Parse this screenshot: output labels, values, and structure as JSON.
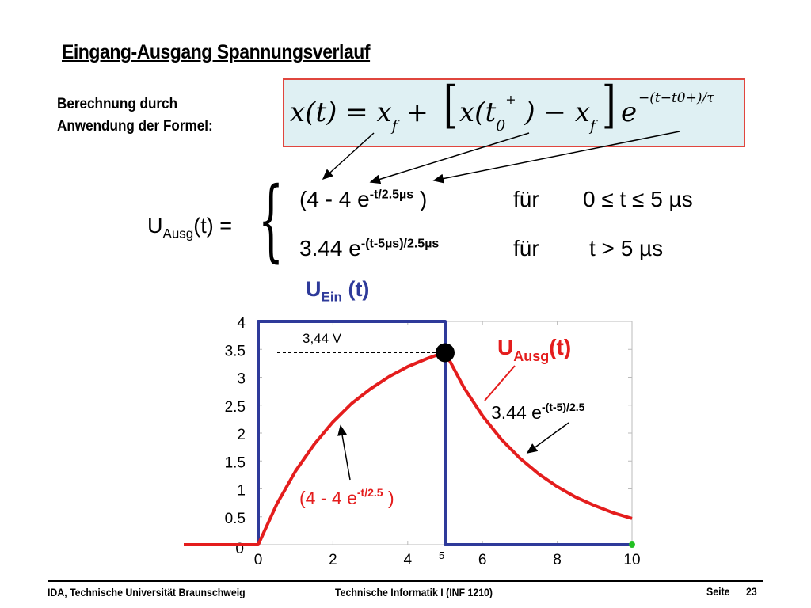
{
  "title": "Eingang-Ausgang Spannungsverlauf",
  "description": [
    "Berechnung durch",
    "Anwendung der Formel:"
  ],
  "formula": {
    "lhs": "x(t)",
    "eq": "=",
    "xf": "x",
    "f_sub": "f",
    "plus": "+",
    "bracket_open": "[",
    "xt0": "x(t",
    "t0_sub": "0",
    "t0_sup": "+",
    "close_paren": ")",
    "minus": "−",
    "bracket_close": "]",
    "e": "e",
    "exponent": "−(t−t0+)/τ"
  },
  "uausg_def": {
    "lhs_main": "U",
    "lhs_sub": "Ausg",
    "lhs_rest": "(t) =",
    "cases": [
      {
        "expr": "(4 - 4 e",
        "exp": "-t/2.5µs",
        "close": " )",
        "fuer": "für",
        "cond": "0 ≤ t ≤ 5 µs"
      },
      {
        "expr": "3.44 e",
        "exp": "-(t-5µs)/2.5µs",
        "close": "",
        "fuer": "für",
        "cond": "t > 5 µs"
      }
    ]
  },
  "labels": {
    "uein_main": "U",
    "uein_sub": "Ein",
    "uein_rest": " (t)",
    "uausg_main": "U",
    "uausg_sub": "Ausg",
    "uausg_rest": "(t)",
    "decay_formula_main": "3.44 e",
    "decay_formula_exp": "-(t-5)/2.5",
    "rise_formula_main": "(4 - 4 e",
    "rise_formula_exp": "-t/2.5",
    "rise_formula_close": " )",
    "annotation_344": "3,44 V",
    "tick5": "5"
  },
  "footer": {
    "left": "IDA, Technische Universität Braunschweig",
    "center": "Technische Informatik I (INF 1210)",
    "right_label": "Seite",
    "page": "23"
  },
  "colors": {
    "input": "#2e3a9a",
    "output": "#e41d1d",
    "formula_border": "#e0463e",
    "formula_bg": "#dff0f3"
  },
  "chart_data": {
    "type": "line",
    "xlim": [
      0,
      10
    ],
    "ylim": [
      0,
      4
    ],
    "xticks": [
      0,
      2,
      4,
      6,
      8,
      10
    ],
    "yticks": [
      0,
      0.5,
      1,
      1.5,
      2,
      2.5,
      3,
      3.5,
      4
    ],
    "ytick_labels": [
      "0",
      "0.5",
      "1",
      "1.5",
      "2",
      "2.5",
      "3",
      "3.5",
      "4"
    ],
    "xtick_labels": [
      "0",
      "2",
      "4",
      "6",
      "8",
      "10"
    ],
    "series": [
      {
        "name": "UEin (t)",
        "color": "#2e3a9a",
        "x": [
          0,
          0,
          5,
          5,
          10
        ],
        "y": [
          0,
          4,
          4,
          0,
          0
        ]
      },
      {
        "name": "UAusg(t)",
        "color": "#e41d1d",
        "x": [
          -1,
          0,
          0.5,
          1,
          1.5,
          2,
          2.5,
          3,
          3.5,
          4,
          4.5,
          5,
          5.5,
          6,
          6.5,
          7,
          7.5,
          8,
          8.5,
          9,
          9.5,
          10
        ],
        "y": [
          0,
          0,
          0.73,
          1.32,
          1.8,
          2.2,
          2.53,
          2.79,
          3.01,
          3.19,
          3.33,
          3.45,
          2.82,
          2.31,
          1.89,
          1.55,
          1.27,
          1.04,
          0.85,
          0.7,
          0.57,
          0.47
        ]
      }
    ],
    "markers": [
      {
        "x": 5,
        "y": 3.44,
        "color": "#000000"
      },
      {
        "x": 10,
        "y": 0,
        "color": "#22c022"
      }
    ]
  }
}
